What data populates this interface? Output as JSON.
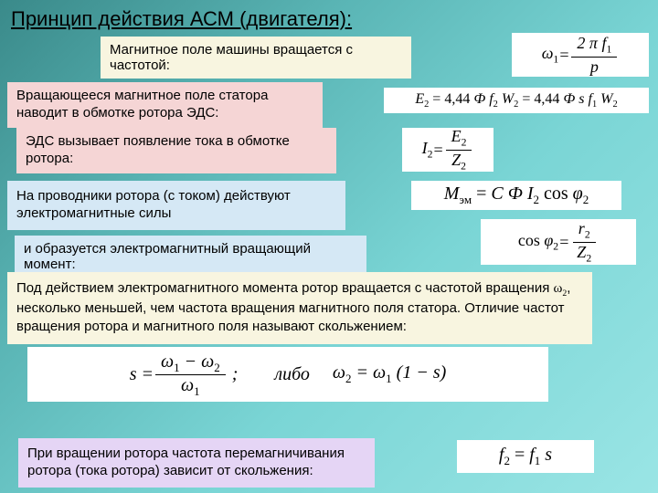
{
  "title": "Принцип действия  АСМ (двигателя):",
  "rows": {
    "r1": "Магнитное поле машины вращается с частотой:",
    "r2": "Вращающееся магнитное поле статора наводит в обмотке ротора ЭДС:",
    "r3": "ЭДС вызывает появление тока в обмотке ротора:",
    "r4": "На проводники ротора (с током) действуют электромагнитные силы",
    "r5": "и образуется электромагнитный вращающий момент:",
    "r6a": "Под действием электромагнитного момента ротор вращается с частотой вращения ",
    "r6b": ", несколько меньшей, чем частота вращения магнитного поля статора. Отличие частот вращения ротора и магнитного поля называют скольжением:",
    "r7": "При вращении ротора частота перемагничивания ротора (тока ротора) зависит от скольжения:"
  },
  "formulas": {
    "f1": {
      "omega": "ω",
      "sub1": "1",
      "eq": " = ",
      "num": "2 π  f",
      "numsub": "1",
      "den": "p"
    },
    "f2": "E₂ = 4,44 Ф f₂ W₂ = 4,44 Ф s f₁ W₂",
    "f3": {
      "lhs": "I",
      "lsub": "2",
      "eq": " = ",
      "num": "E",
      "numsub": "2",
      "den": "Z",
      "densub": "2"
    },
    "f4": "Mэм = С Ф I₂ cos φ₂",
    "f5": {
      "lhs": "cos φ",
      "lsub": "2",
      "eq": " = ",
      "num": "r",
      "numsub": "2",
      "den": "Z",
      "densub": "2"
    },
    "f6": {
      "s": "s = ",
      "num1": "ω₁ − ω₂",
      "den1": "ω₁",
      "mid": " ;        либо     ",
      "rhs": "ω₂ = ω₁ (1 − s)"
    },
    "f7": "f₂ = f₁ s"
  },
  "colors": {
    "bg_gradient_start": "#3a8a8a",
    "bg_gradient_end": "#9ae5e5",
    "yellow_box": "#f8f5e0",
    "pink_box": "#f5d5d5",
    "blue_box": "#d5e8f5",
    "purple_box": "#e5d5f5",
    "formula_bg": "#ffffff"
  }
}
